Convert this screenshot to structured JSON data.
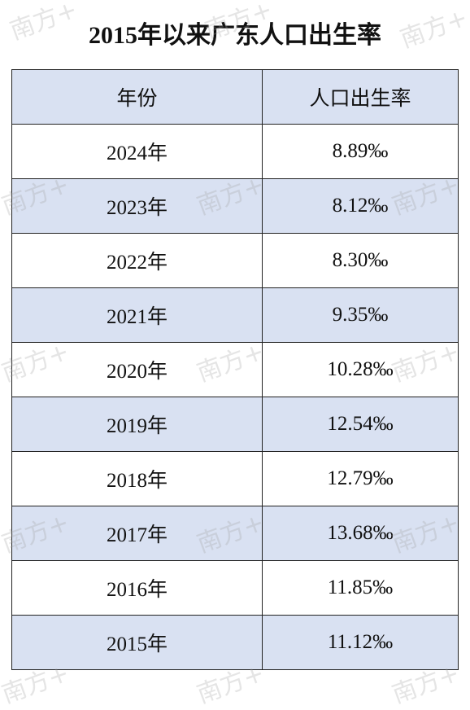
{
  "title": "2015年以来广东人口出生率",
  "watermark": "南方+",
  "table": {
    "header": [
      "年份",
      "人口出生率"
    ],
    "rows": [
      [
        "2024年",
        "8.89‰"
      ],
      [
        "2023年",
        "8.12‰"
      ],
      [
        "2022年",
        "8.30‰"
      ],
      [
        "2021年",
        "9.35‰"
      ],
      [
        "2020年",
        "10.28‰"
      ],
      [
        "2019年",
        "12.54‰"
      ],
      [
        "2018年",
        "12.79‰"
      ],
      [
        "2017年",
        "13.68‰"
      ],
      [
        "2016年",
        "11.85‰"
      ],
      [
        "2015年",
        "11.12‰"
      ]
    ]
  }
}
